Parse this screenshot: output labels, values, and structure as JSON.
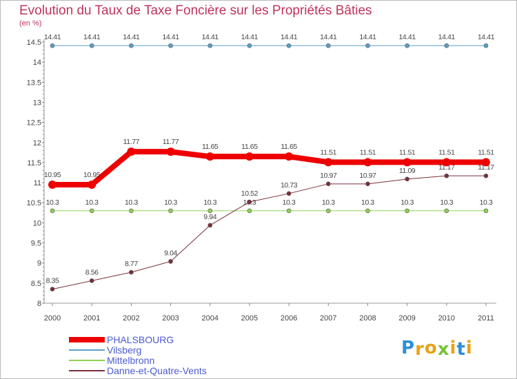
{
  "chart_data": {
    "type": "line",
    "title": "Evolution du Taux de Taxe Foncière sur les Propriétés Bâties",
    "ylabel": "(en %)",
    "xlabel": "",
    "ylim": [
      8,
      14.5
    ],
    "yticks": [
      "8",
      "8.5",
      "9",
      "9.5",
      "10",
      "10.5",
      "11",
      "11.5",
      "12",
      "12.5",
      "13",
      "13.5",
      "14",
      "14.5"
    ],
    "x": [
      "2000",
      "2001",
      "2002",
      "2003",
      "2004",
      "2005",
      "2006",
      "2007",
      "2008",
      "2009",
      "2010",
      "2011"
    ],
    "series": [
      {
        "name": "Vilsberg",
        "color": "#5b9ec9",
        "width": 1,
        "marker": 3,
        "values": [
          14.41,
          14.41,
          14.41,
          14.41,
          14.41,
          14.41,
          14.41,
          14.41,
          14.41,
          14.41,
          14.41,
          14.41
        ],
        "labels": [
          "14.41",
          "14.41",
          "14.41",
          "14.41",
          "14.41",
          "14.41",
          "14.41",
          "14.41",
          "14.41",
          "14.41",
          "14.41",
          "14.41"
        ]
      },
      {
        "name": "Mittelbronn",
        "color": "#8fd14f",
        "width": 1,
        "marker": 3,
        "values": [
          10.3,
          10.3,
          10.3,
          10.3,
          10.3,
          10.3,
          10.3,
          10.3,
          10.3,
          10.3,
          10.3,
          10.3
        ],
        "labels": [
          "10.3",
          "10.3",
          "10.3",
          "10.3",
          "10.3",
          "10.3",
          "10.3",
          "10.3",
          "10.3",
          "10.3",
          "10.3",
          "10.3"
        ]
      },
      {
        "name": "Danne-et-Quatre-Vents",
        "color": "#7a2f3a",
        "width": 1,
        "marker": 3,
        "values": [
          8.35,
          8.56,
          8.77,
          9.04,
          9.94,
          10.52,
          10.73,
          10.97,
          10.97,
          11.09,
          11.17,
          11.17
        ],
        "labels": [
          "8.35",
          "8.56",
          "8.77",
          "9.04",
          "9.94",
          "10.52",
          "10.73",
          "10.97",
          "10.97",
          "11.09",
          "11.17",
          "11.17"
        ]
      },
      {
        "name": "PHALSBOURG",
        "color": "#ee0000",
        "width": 8,
        "marker": 6,
        "values": [
          10.95,
          10.95,
          11.77,
          11.77,
          11.65,
          11.65,
          11.65,
          11.51,
          11.51,
          11.51,
          11.51,
          11.51
        ],
        "labels": [
          "10.95",
          "10.95",
          "11.77",
          "11.77",
          "11.65",
          "11.65",
          "11.65",
          "11.51",
          "11.51",
          "11.51",
          "11.51",
          "11.51"
        ]
      }
    ],
    "legend": {
      "position": "bottom-left",
      "entries": [
        {
          "name": "PHALSBOURG",
          "color": "#ee0000",
          "thickness": 8
        },
        {
          "name": "Vilsberg",
          "color": "#5b9ec9",
          "thickness": 2
        },
        {
          "name": "Mittelbronn",
          "color": "#8fd14f",
          "thickness": 2
        },
        {
          "name": "Danne-et-Quatre-Vents",
          "color": "#7a2f3a",
          "thickness": 2
        }
      ]
    }
  },
  "logo": {
    "text": "Proxiti",
    "letters": [
      {
        "ch": "P",
        "color": "#2b8fd8"
      },
      {
        "ch": "r",
        "color": "#e8a21a"
      },
      {
        "ch": "o",
        "color": "#e8a21a"
      },
      {
        "ch": "x",
        "color": "#7cc23a"
      },
      {
        "ch": "i",
        "color": "#e8a21a"
      },
      {
        "ch": "t",
        "color": "#2b8fd8"
      },
      {
        "ch": "i",
        "color": "#e8a21a"
      }
    ]
  }
}
